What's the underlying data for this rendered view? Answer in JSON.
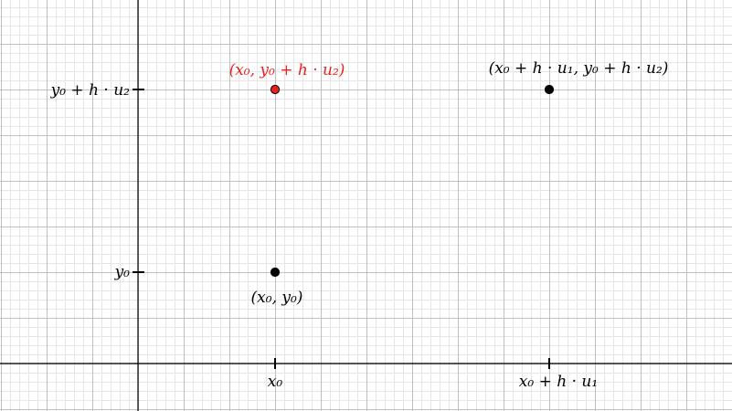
{
  "colors": {
    "background": "#ffffff",
    "grid_major": "#c0c0c0",
    "grid_minor": "#e6e6e6",
    "axis": "#000000",
    "point_black": "#000000",
    "point_red": "#e8211d"
  },
  "axes": {
    "x_ticks": [
      {
        "label": "x₀"
      },
      {
        "label": "x₀ + h · u₁"
      }
    ],
    "y_ticks": [
      {
        "label": "y₀"
      },
      {
        "label": "y₀ + h · u₂"
      }
    ]
  },
  "points": [
    {
      "label": "(x₀, y₀)",
      "color": "#000000"
    },
    {
      "label": "(x₀, y₀ + h · u₂)",
      "color": "#e8211d"
    },
    {
      "label": "(x₀ + h · u₁, y₀ + h · u₂)",
      "color": "#000000"
    }
  ]
}
